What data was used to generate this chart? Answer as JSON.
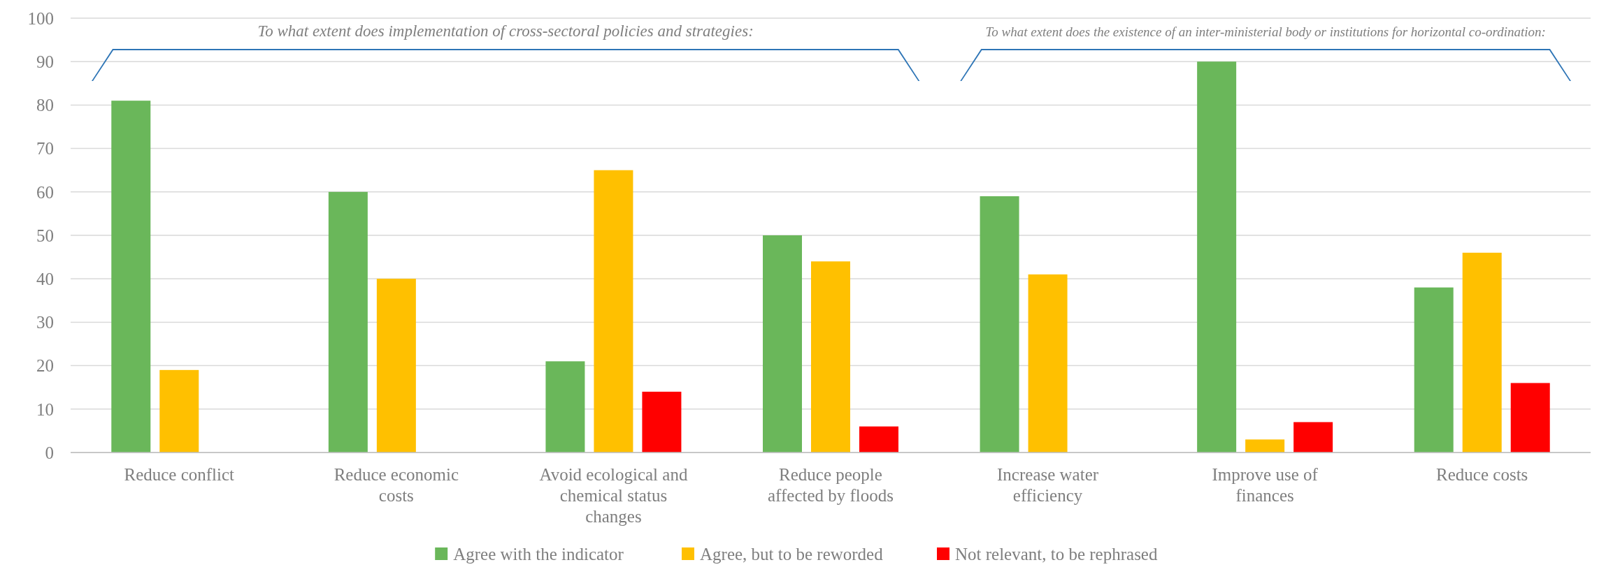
{
  "chart_data": {
    "type": "bar",
    "categories": [
      "Reduce conflict",
      "Reduce economic costs",
      "Avoid ecological and chemical status changes",
      "Reduce people affected by floods",
      "Increase water efficiency",
      "Improve use of finances",
      "Reduce costs"
    ],
    "series": [
      {
        "name": "Agree with the indicator",
        "color": "#6ab75a",
        "values": [
          81,
          60,
          21,
          50,
          59,
          90,
          38
        ]
      },
      {
        "name": "Agree, but to be reworded",
        "color": "#ffc000",
        "values": [
          19,
          40,
          65,
          44,
          41,
          3,
          46
        ]
      },
      {
        "name": "Not relevant, to be rephrased",
        "color": "#ff0000",
        "values": [
          null,
          null,
          14,
          6,
          null,
          7,
          16
        ]
      }
    ],
    "ylim": [
      0,
      100
    ],
    "yticks": [
      0,
      10,
      20,
      30,
      40,
      50,
      60,
      70,
      80,
      90,
      100
    ],
    "grid": "y",
    "legend": "bottom",
    "annotations": [
      "To what extent does implementation of cross-sectoral policies and strategies:",
      "To what extent does the existence of an inter-ministerial body or institutions for horizontal co-ordination:"
    ]
  }
}
